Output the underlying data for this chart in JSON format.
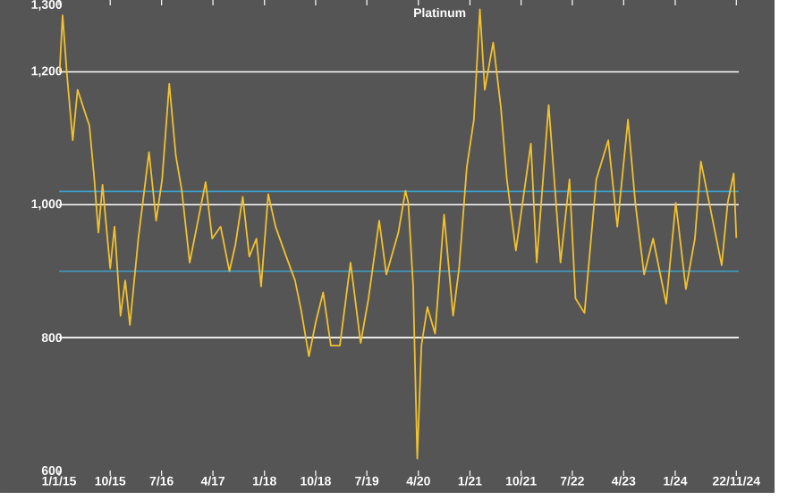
{
  "chart_data": {
    "type": "line",
    "title": "Platinum",
    "x": [
      "2015-01-04",
      "2015-01-20",
      "2015-02-11",
      "2015-03-15",
      "2015-04-10",
      "2015-05-11",
      "2015-06-12",
      "2015-07-08",
      "2015-07-30",
      "2015-08-21",
      "2015-10-01",
      "2015-10-24",
      "2015-11-25",
      "2015-12-20",
      "2016-01-14",
      "2016-02-28",
      "2016-04-25",
      "2016-06-02",
      "2016-07-04",
      "2016-08-11",
      "2016-09-15",
      "2016-10-17",
      "2016-11-28",
      "2017-01-05",
      "2017-02-21",
      "2017-03-28",
      "2017-05-12",
      "2017-06-28",
      "2017-07-30",
      "2017-09-07",
      "2017-10-12",
      "2017-11-19",
      "2017-12-14",
      "2018-01-21",
      "2018-03-01",
      "2018-04-27",
      "2018-06-13",
      "2018-07-15",
      "2018-08-26",
      "2018-10-02",
      "2018-11-10",
      "2018-12-21",
      "2019-02-07",
      "2019-04-05",
      "2019-05-29",
      "2019-07-10",
      "2019-09-05",
      "2019-10-13",
      "2019-12-16",
      "2020-01-23",
      "2020-02-07",
      "2020-03-04",
      "2020-03-26",
      "2020-04-17",
      "2020-05-19",
      "2020-06-29",
      "2020-08-16",
      "2020-10-03",
      "2020-11-04",
      "2020-12-15",
      "2021-01-22",
      "2021-02-23",
      "2021-03-21",
      "2021-05-05",
      "2021-06-15",
      "2021-07-17",
      "2021-09-03",
      "2021-11-22",
      "2021-12-23",
      "2022-02-25",
      "2022-04-29",
      "2022-06-16",
      "2022-07-18",
      "2022-09-04",
      "2022-11-06",
      "2023-01-09",
      "2023-02-26",
      "2023-04-24",
      "2023-06-02",
      "2023-07-19",
      "2023-09-05",
      "2023-11-14",
      "2024-01-04",
      "2024-02-27",
      "2024-04-15",
      "2024-05-17",
      "2024-07-13",
      "2024-09-05",
      "2024-10-07",
      "2024-11-08",
      "2024-11-22"
    ],
    "series": [
      {
        "color": "#f2c12e",
        "values": [
          1200,
          1285,
          1200,
          1097,
          1173,
          1146,
          1119,
          1039,
          958,
          1030,
          904,
          967,
          833,
          886,
          819,
          949,
          1079,
          976,
          1038,
          1182,
          1074,
          1021,
          913,
          967,
          1034,
          949,
          967,
          900,
          940,
          1012,
          922,
          949,
          877,
          1016,
          967,
          922,
          886,
          842,
          772,
          824,
          868,
          788,
          788,
          913,
          792,
          859,
          976,
          895,
          958,
          1021,
          1003,
          878,
          618,
          788,
          846,
          806,
          985,
          833,
          904,
          1056,
          1128,
          1294,
          1173,
          1244,
          1146,
          1038,
          931,
          1092,
          913,
          1150,
          913,
          1038,
          859,
          837,
          1038,
          1097,
          967,
          1128,
          1003,
          895,
          949,
          851,
          1003,
          873,
          949,
          1065,
          985,
          909,
          1003,
          1047,
          950
        ]
      }
    ],
    "xlim": [
      "2015-01-01",
      "2024-12-05"
    ],
    "xticks": [
      {
        "value": "2015-01-01",
        "label": "1/1/15"
      },
      {
        "value": "2015-10-01",
        "label": "10/15"
      },
      {
        "value": "2016-07-01",
        "label": "7/16"
      },
      {
        "value": "2017-04-01",
        "label": "4/17"
      },
      {
        "value": "2018-01-01",
        "label": "1/18"
      },
      {
        "value": "2018-10-01",
        "label": "10/18"
      },
      {
        "value": "2019-07-01",
        "label": "7/19"
      },
      {
        "value": "2020-04-01",
        "label": "4/20"
      },
      {
        "value": "2021-01-01",
        "label": "1/21"
      },
      {
        "value": "2021-10-01",
        "label": "10/21"
      },
      {
        "value": "2022-07-01",
        "label": "7/22"
      },
      {
        "value": "2023-04-01",
        "label": "4/23"
      },
      {
        "value": "2024-01-01",
        "label": "1/24"
      },
      {
        "value": "2024-11-22",
        "label": "22/11/24"
      }
    ],
    "ylim": [
      600,
      1300
    ],
    "yticks": [
      600,
      800,
      {
        "value": 1000,
        "label": "1,000"
      },
      {
        "value": 1200,
        "label": "1,200"
      },
      {
        "value": 1300,
        "label": "1,300"
      }
    ],
    "grid": "y",
    "ref_lines": [
      {
        "axis": "y",
        "value": 1020,
        "color": "#3f9fc8"
      },
      {
        "axis": "y",
        "value": 900,
        "color": "#3f9fc8"
      }
    ]
  }
}
